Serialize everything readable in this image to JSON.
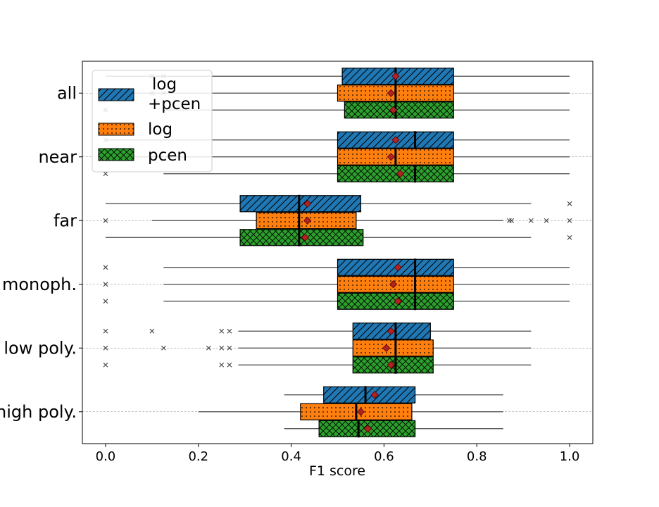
{
  "chart_data": {
    "type": "boxplot-horizontal",
    "xlabel": "F1 score",
    "xlim": [
      -0.05,
      1.05
    ],
    "xticks": [
      "0.0",
      "0.2",
      "0.4",
      "0.6",
      "0.8",
      "1.0"
    ],
    "xtick_values": [
      0.0,
      0.2,
      0.4,
      0.6,
      0.8,
      1.0
    ],
    "grid": "horizontal dashed at categories",
    "legend_position": "top-left",
    "categories": [
      "all",
      "near",
      "far",
      "monoph.",
      "low poly.",
      "high poly."
    ],
    "series": [
      {
        "name": "log\n+pcen",
        "color": "#1f77b4",
        "hatch": "diagonal",
        "stats": [
          {
            "whislo": 0.0,
            "q1": 0.51,
            "med": 0.625,
            "q3": 0.75,
            "whishi": 1.0,
            "mean": 0.625,
            "fliers": [
              0.1,
              0.125
            ]
          },
          {
            "whislo": 0.0,
            "q1": 0.5,
            "med": 0.667,
            "q3": 0.75,
            "whishi": 1.0,
            "mean": 0.625,
            "fliers": [
              0.0
            ]
          },
          {
            "whislo": 0.0,
            "q1": 0.29,
            "med": 0.417,
            "q3": 0.55,
            "whishi": 0.917,
            "mean": 0.435,
            "fliers": [
              1.0
            ]
          },
          {
            "whislo": 0.125,
            "q1": 0.5,
            "med": 0.667,
            "q3": 0.75,
            "whishi": 1.0,
            "mean": 0.63,
            "fliers": [
              0.0
            ]
          },
          {
            "whislo": 0.286,
            "q1": 0.533,
            "med": 0.625,
            "q3": 0.7,
            "whishi": 0.917,
            "mean": 0.615,
            "fliers": [
              0.0,
              0.1,
              0.25,
              0.267
            ]
          },
          {
            "whislo": 0.385,
            "q1": 0.47,
            "med": 0.56,
            "q3": 0.667,
            "whishi": 0.857,
            "mean": 0.58,
            "fliers": []
          }
        ]
      },
      {
        "name": "log",
        "color": "#ff7f0e",
        "hatch": "dots",
        "stats": [
          {
            "whislo": 0.0,
            "q1": 0.5,
            "med": 0.625,
            "q3": 0.75,
            "whishi": 1.0,
            "mean": 0.615,
            "fliers": [
              0.1,
              0.125
            ]
          },
          {
            "whislo": 0.0,
            "q1": 0.5,
            "med": 0.625,
            "q3": 0.75,
            "whishi": 1.0,
            "mean": 0.615,
            "fliers": [
              0.0
            ]
          },
          {
            "whislo": 0.1,
            "q1": 0.325,
            "med": 0.417,
            "q3": 0.54,
            "whishi": 0.857,
            "mean": 0.435,
            "fliers": [
              0.0,
              0.87,
              0.875,
              0.917,
              0.95,
              1.0
            ]
          },
          {
            "whislo": 0.125,
            "q1": 0.5,
            "med": 0.667,
            "q3": 0.75,
            "whishi": 1.0,
            "mean": 0.62,
            "fliers": [
              0.0
            ]
          },
          {
            "whislo": 0.286,
            "q1": 0.533,
            "med": 0.625,
            "q3": 0.706,
            "whishi": 0.917,
            "mean": 0.605,
            "fliers": [
              0.0,
              0.125,
              0.222,
              0.25,
              0.267
            ]
          },
          {
            "whislo": 0.2,
            "q1": 0.42,
            "med": 0.54,
            "q3": 0.66,
            "whishi": 0.857,
            "mean": 0.55,
            "fliers": []
          }
        ]
      },
      {
        "name": "pcen",
        "color": "#2ca02c",
        "hatch": "crosshatch",
        "stats": [
          {
            "whislo": 0.125,
            "q1": 0.515,
            "med": 0.625,
            "q3": 0.75,
            "whishi": 1.0,
            "mean": 0.62,
            "fliers": [
              0.0
            ]
          },
          {
            "whislo": 0.125,
            "q1": 0.5,
            "med": 0.667,
            "q3": 0.75,
            "whishi": 1.0,
            "mean": 0.635,
            "fliers": [
              0.0
            ]
          },
          {
            "whislo": 0.0,
            "q1": 0.29,
            "med": 0.417,
            "q3": 0.555,
            "whishi": 0.917,
            "mean": 0.43,
            "fliers": [
              1.0
            ]
          },
          {
            "whislo": 0.125,
            "q1": 0.5,
            "med": 0.667,
            "q3": 0.75,
            "whishi": 1.0,
            "mean": 0.63,
            "fliers": [
              0.0
            ]
          },
          {
            "whislo": 0.286,
            "q1": 0.533,
            "med": 0.625,
            "q3": 0.706,
            "whishi": 0.917,
            "mean": 0.615,
            "fliers": [
              0.0,
              0.25,
              0.267
            ]
          },
          {
            "whislo": 0.385,
            "q1": 0.46,
            "med": 0.545,
            "q3": 0.667,
            "whishi": 0.857,
            "mean": 0.565,
            "fliers": []
          }
        ]
      }
    ]
  }
}
